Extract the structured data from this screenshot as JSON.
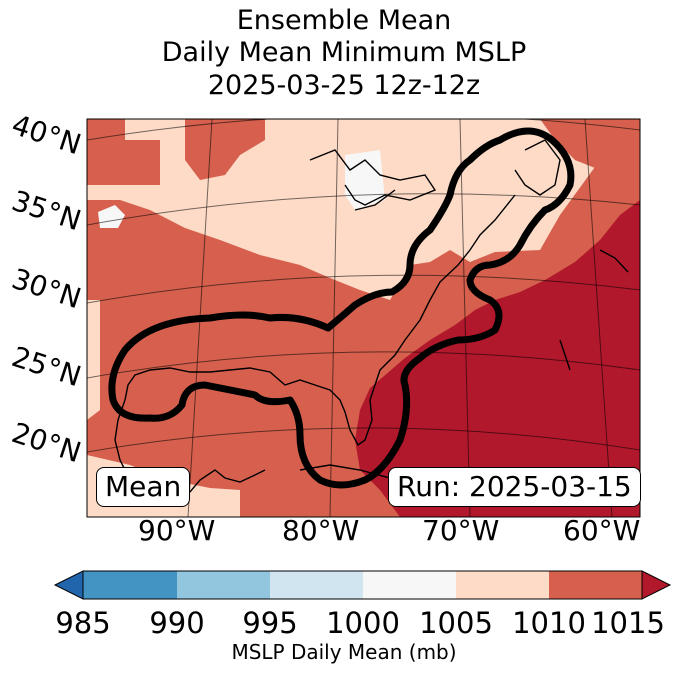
{
  "title": {
    "line1": "Ensemble Mean",
    "line2": "Daily Mean Minimum MSLP",
    "line3": "2025-03-25 12z-12z"
  },
  "map": {
    "lat_labels": [
      "40°N",
      "35°N",
      "30°N",
      "25°N",
      "20°N"
    ],
    "lon_labels": [
      "90°W",
      "80°W",
      "70°W",
      "60°W"
    ],
    "mean_label": "Mean",
    "run_label": "Run: 2025-03-15"
  },
  "colorbar": {
    "ticks": [
      "985",
      "990",
      "995",
      "1000",
      "1005",
      "1010",
      "1015"
    ],
    "label": "MSLP Daily Mean (mb)",
    "colors": [
      "#2166ac",
      "#4393c3",
      "#92c5de",
      "#d1e5f0",
      "#f7f7f7",
      "#fddbc7",
      "#d6604d",
      "#b2182b"
    ]
  }
}
